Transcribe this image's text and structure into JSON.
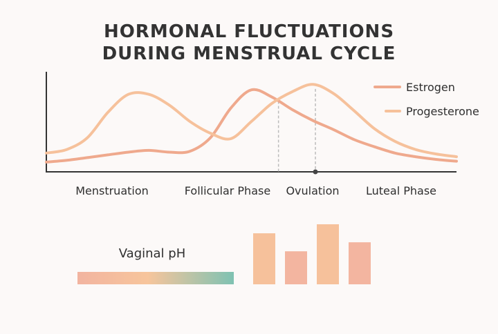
{
  "title": [
    "HORMONAL FLUCTUATIONS",
    "DURING MENSTRUAL CYCLE"
  ],
  "colors": {
    "estrogen": "#efa98d",
    "progesterone": "#f6c19b",
    "axis": "#333333",
    "marker_line": "#bbbbbb",
    "ph_gradient": [
      "#f2b4a0",
      "#f7c59c",
      "#7fc2b2"
    ]
  },
  "legend": [
    {
      "label": "Estrogen",
      "color": "#efa98d"
    },
    {
      "label": "Progesterone",
      "color": "#f6c19b"
    }
  ],
  "phases": [
    "Menstruation",
    "Follicular Phase",
    "Ovulation",
    "Luteal Phase"
  ],
  "ph_label": "Vaginal pH",
  "chart_data": [
    {
      "type": "line",
      "title": "HORMONAL FLUCTUATIONS DURING MENSTRUAL CYCLE",
      "x": [
        0,
        5,
        10,
        15,
        20,
        25,
        30,
        35,
        40,
        45,
        50,
        55,
        60,
        65,
        70,
        75,
        80,
        85,
        90,
        95,
        100
      ],
      "series": [
        {
          "name": "Estrogen",
          "color": "#efa98d",
          "values": [
            0.1,
            0.12,
            0.15,
            0.18,
            0.21,
            0.23,
            0.21,
            0.22,
            0.37,
            0.7,
            0.9,
            0.82,
            0.68,
            0.56,
            0.46,
            0.35,
            0.27,
            0.2,
            0.16,
            0.13,
            0.11
          ]
        },
        {
          "name": "Progesterone",
          "color": "#f6c19b",
          "values": [
            0.2,
            0.24,
            0.37,
            0.65,
            0.85,
            0.85,
            0.73,
            0.55,
            0.42,
            0.36,
            0.55,
            0.75,
            0.88,
            0.96,
            0.86,
            0.67,
            0.47,
            0.33,
            0.24,
            0.19,
            0.16
          ]
        }
      ],
      "markers": [
        {
          "x": 56.6
        },
        {
          "x": 65.6
        }
      ],
      "ylim": [
        0,
        1.1
      ],
      "grid": false,
      "legend_position": "top-right",
      "xlabel": "",
      "ylabel": ""
    },
    {
      "type": "bar",
      "values": [
        0.85,
        0.55,
        1.0,
        0.7
      ],
      "colors": [
        "#f6c19b",
        "#f3b5a0",
        "#f6c19b",
        "#f3b5a0"
      ]
    }
  ]
}
